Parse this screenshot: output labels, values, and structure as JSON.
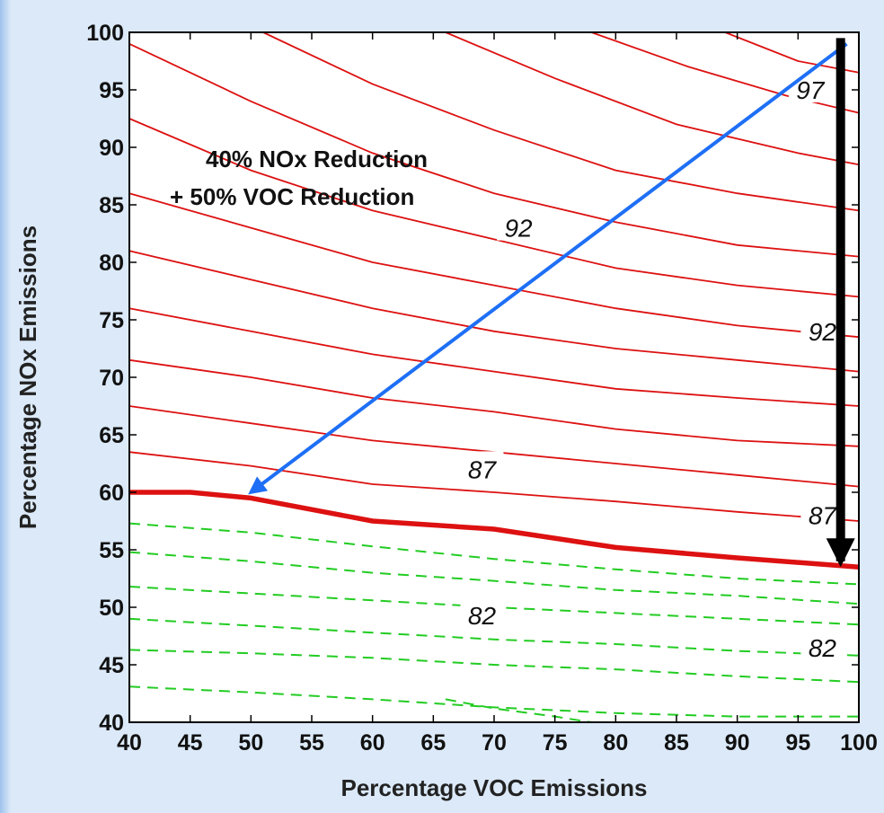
{
  "chart_data": {
    "type": "contour",
    "xlabel": "Percentage VOC Emissions",
    "ylabel": "Percentage NOx Emissions",
    "xlim": [
      40,
      100
    ],
    "ylim": [
      40,
      100
    ],
    "x_ticks": [
      40,
      45,
      50,
      55,
      60,
      65,
      70,
      75,
      80,
      85,
      90,
      95,
      100
    ],
    "y_ticks": [
      40,
      45,
      50,
      55,
      60,
      65,
      70,
      75,
      80,
      85,
      90,
      95,
      100
    ],
    "colors": {
      "above_threshold": "#dd1111",
      "below_threshold": "#22cc22",
      "reduction_arrow": "#1e6ff5",
      "nox_only_arrow": "#000000"
    },
    "threshold_contour": {
      "points": [
        [
          40,
          60
        ],
        [
          45,
          60
        ],
        [
          50,
          59.5
        ],
        [
          55,
          58.5
        ],
        [
          60,
          57.5
        ],
        [
          70,
          56.8
        ],
        [
          80,
          55.2
        ],
        [
          90,
          54.3
        ],
        [
          100,
          53.5
        ]
      ]
    },
    "contours_above": [
      {
        "points": [
          [
            40,
            63.5
          ],
          [
            50,
            62.3
          ],
          [
            60,
            60.7
          ],
          [
            70,
            60
          ],
          [
            80,
            59.2
          ],
          [
            90,
            58.3
          ],
          [
            100,
            57.5
          ]
        ]
      },
      {
        "points": [
          [
            40,
            67.5
          ],
          [
            50,
            66
          ],
          [
            60,
            64.5
          ],
          [
            70,
            63.5
          ],
          [
            80,
            62.5
          ],
          [
            90,
            61.5
          ],
          [
            100,
            60.5
          ]
        ]
      },
      {
        "points": [
          [
            40,
            71.5
          ],
          [
            50,
            70
          ],
          [
            60,
            68.2
          ],
          [
            70,
            67
          ],
          [
            80,
            65.5
          ],
          [
            90,
            64.5
          ],
          [
            100,
            64
          ]
        ]
      },
      {
        "points": [
          [
            40,
            76
          ],
          [
            50,
            74
          ],
          [
            60,
            72
          ],
          [
            70,
            70.5
          ],
          [
            80,
            69
          ],
          [
            90,
            68.2
          ],
          [
            100,
            67.5
          ]
        ]
      },
      {
        "points": [
          [
            40,
            81
          ],
          [
            50,
            78.5
          ],
          [
            60,
            76
          ],
          [
            70,
            74
          ],
          [
            80,
            72.5
          ],
          [
            90,
            71.5
          ],
          [
            100,
            70.5
          ]
        ]
      },
      {
        "points": [
          [
            40,
            86
          ],
          [
            50,
            83
          ],
          [
            60,
            80
          ],
          [
            70,
            78
          ],
          [
            80,
            76
          ],
          [
            90,
            74.5
          ],
          [
            100,
            73.5
          ]
        ]
      },
      {
        "points": [
          [
            40,
            92.5
          ],
          [
            50,
            88
          ],
          [
            60,
            84.5
          ],
          [
            70,
            82
          ],
          [
            80,
            79.5
          ],
          [
            90,
            78
          ],
          [
            100,
            77
          ]
        ]
      },
      {
        "points": [
          [
            40,
            99
          ],
          [
            50,
            94
          ],
          [
            60,
            89.5
          ],
          [
            70,
            86
          ],
          [
            80,
            83.5
          ],
          [
            90,
            81.5
          ],
          [
            100,
            80.5
          ]
        ]
      },
      {
        "points": [
          [
            51,
            100
          ],
          [
            60,
            95.5
          ],
          [
            70,
            91.5
          ],
          [
            80,
            88
          ],
          [
            90,
            86
          ],
          [
            100,
            84.5
          ]
        ]
      },
      {
        "points": [
          [
            66,
            100
          ],
          [
            75,
            96
          ],
          [
            85,
            92
          ],
          [
            95,
            89.5
          ],
          [
            100,
            88.5
          ]
        ]
      },
      {
        "points": [
          [
            78,
            100
          ],
          [
            86,
            97
          ],
          [
            94,
            94.5
          ],
          [
            100,
            93
          ]
        ]
      },
      {
        "points": [
          [
            89,
            100
          ],
          [
            95,
            97.5
          ],
          [
            100,
            96.5
          ]
        ]
      }
    ],
    "contours_below": [
      {
        "points": [
          [
            40,
            57.3
          ],
          [
            50,
            56.5
          ],
          [
            60,
            55.3
          ],
          [
            70,
            54.2
          ],
          [
            80,
            53.3
          ],
          [
            90,
            52.5
          ],
          [
            100,
            52
          ]
        ]
      },
      {
        "points": [
          [
            40,
            54.8
          ],
          [
            50,
            54
          ],
          [
            60,
            53
          ],
          [
            70,
            52.3
          ],
          [
            80,
            51.5
          ],
          [
            90,
            51
          ],
          [
            100,
            50.3
          ]
        ]
      },
      {
        "points": [
          [
            40,
            51.8
          ],
          [
            50,
            51.2
          ],
          [
            60,
            50.6
          ],
          [
            70,
            50
          ],
          [
            80,
            49.5
          ],
          [
            90,
            49
          ],
          [
            100,
            48.5
          ]
        ]
      },
      {
        "points": [
          [
            40,
            49
          ],
          [
            50,
            48.4
          ],
          [
            60,
            47.8
          ],
          [
            70,
            47.2
          ],
          [
            80,
            46.8
          ],
          [
            90,
            46.2
          ],
          [
            100,
            45.8
          ]
        ]
      },
      {
        "points": [
          [
            40,
            46.3
          ],
          [
            50,
            46
          ],
          [
            60,
            45.6
          ],
          [
            70,
            45
          ],
          [
            80,
            44.6
          ],
          [
            90,
            44
          ],
          [
            100,
            43.5
          ]
        ]
      },
      {
        "points": [
          [
            40,
            43.1
          ],
          [
            50,
            42.6
          ],
          [
            60,
            42
          ],
          [
            70,
            41.3
          ],
          [
            80,
            40.8
          ],
          [
            90,
            40.5
          ],
          [
            100,
            40.5
          ]
        ]
      },
      {
        "points": [
          [
            66,
            42
          ],
          [
            70,
            41.2
          ],
          [
            75,
            40.5
          ],
          [
            78,
            40
          ]
        ]
      }
    ],
    "contour_labels": [
      {
        "text": "97",
        "x": 96,
        "y": 95
      },
      {
        "text": "92",
        "x": 72,
        "y": 83
      },
      {
        "text": "92",
        "x": 97,
        "y": 74
      },
      {
        "text": "87",
        "x": 69,
        "y": 62
      },
      {
        "text": "87",
        "x": 97,
        "y": 58
      },
      {
        "text": "82",
        "x": 69,
        "y": 49.3
      },
      {
        "text": "82",
        "x": 97,
        "y": 46.5
      }
    ],
    "annotation": {
      "lines": [
        "40% NOx Reduction",
        "+ 50% VOC Reduction"
      ]
    },
    "arrows": [
      {
        "name": "combined-reduction-arrow",
        "from": [
          99,
          99
        ],
        "to": [
          50,
          60
        ]
      },
      {
        "name": "nox-only-reduction-arrow",
        "from": [
          98.5,
          99.5
        ],
        "to": [
          98.5,
          54
        ]
      }
    ]
  }
}
